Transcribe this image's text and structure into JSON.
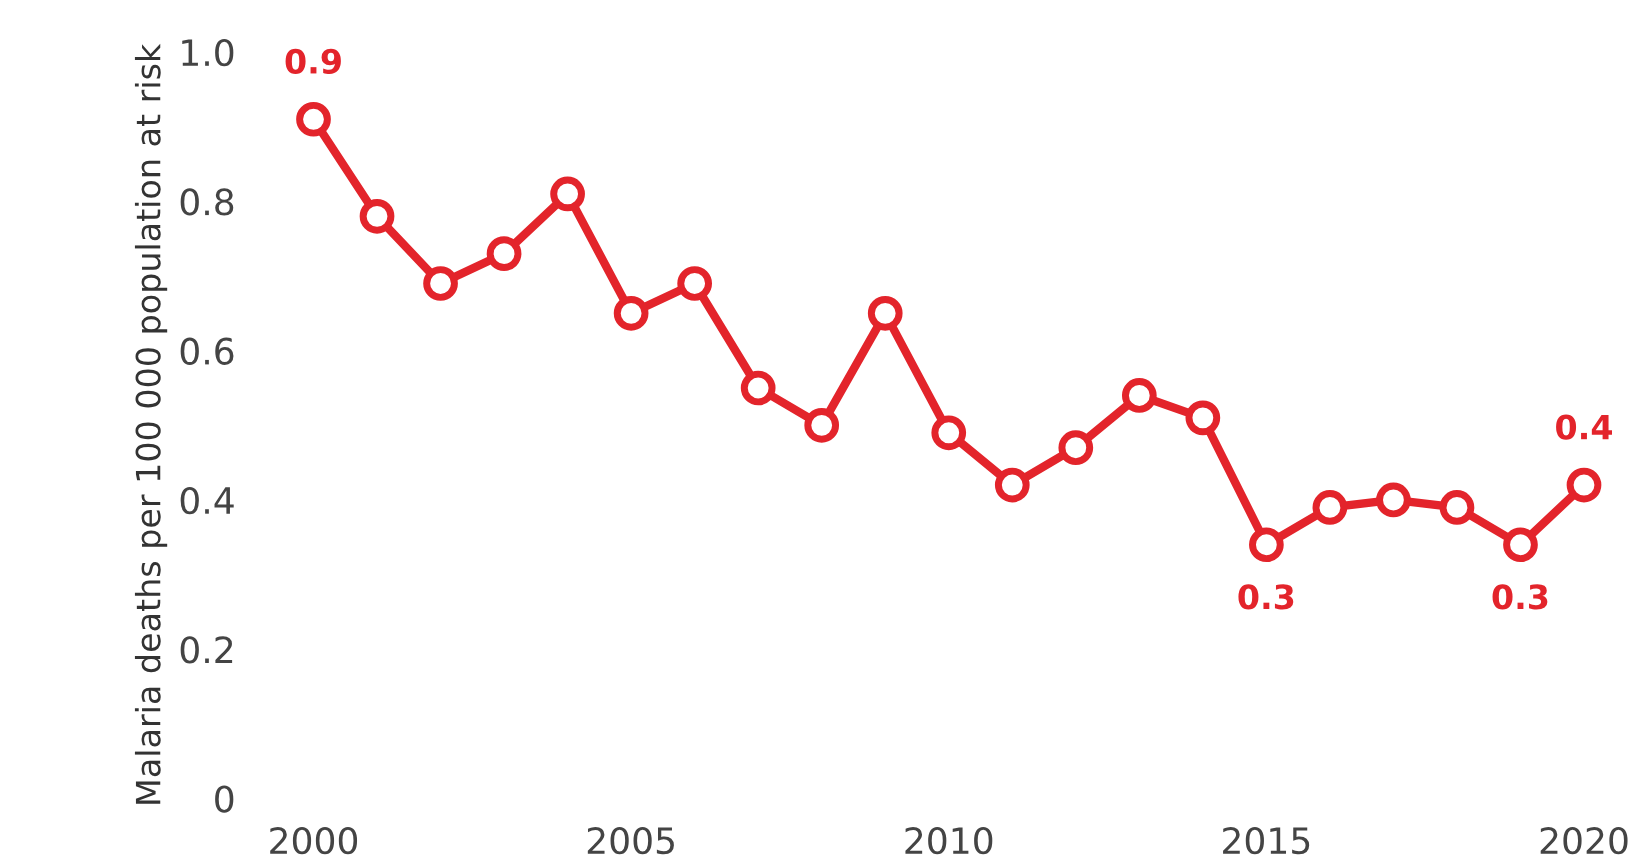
{
  "chart_data": {
    "type": "line",
    "ylabel": "Malaria deaths per 100 000 population at risk",
    "x": [
      2000,
      2001,
      2002,
      2003,
      2004,
      2005,
      2006,
      2007,
      2008,
      2009,
      2010,
      2011,
      2012,
      2013,
      2014,
      2015,
      2016,
      2017,
      2018,
      2019,
      2020
    ],
    "series": [
      {
        "color": "#e3242b",
        "values": [
          0.91,
          0.78,
          0.69,
          0.73,
          0.81,
          0.65,
          0.69,
          0.55,
          0.5,
          0.65,
          0.49,
          0.42,
          0.47,
          0.54,
          0.51,
          0.34,
          0.39,
          0.4,
          0.39,
          0.34,
          0.42
        ],
        "value_labels": [
          "0.9",
          null,
          null,
          null,
          null,
          null,
          null,
          null,
          null,
          null,
          null,
          null,
          null,
          null,
          null,
          "0.3",
          null,
          null,
          null,
          "0.3",
          "0.4"
        ]
      }
    ],
    "xlim": [
      2000,
      2020
    ],
    "xticks": [
      2000,
      2005,
      2010,
      2015,
      2020
    ],
    "ylim": [
      0,
      1.0
    ],
    "yticks": [
      {
        "value": 0,
        "label": "0"
      },
      0.2,
      0.4,
      0.6,
      0.8,
      {
        "value": 1.0,
        "label": "1.0"
      }
    ],
    "grid": false,
    "legend": false,
    "marker": "circle",
    "line_style": "solid"
  }
}
